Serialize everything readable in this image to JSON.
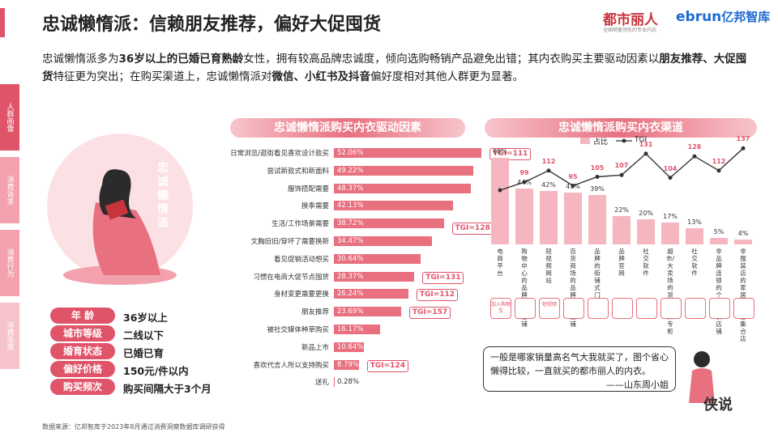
{
  "title": "忠诚懒惰派：信赖朋友推荐，偏好大促囤货",
  "logos": {
    "dushi": "都市丽人",
    "dushi_sub": "全国销量领先的专业内衣",
    "ebrun": "ebrun",
    "ebrun_cn": "亿邦智库"
  },
  "intro": {
    "p1": "忠诚懒惰派多为",
    "b1": "36岁以上的已婚已育熟龄",
    "p2": "女性，拥有较高品牌忠诚度，倾向选购畅销产品避免出错；其内衣购买主要驱动因素以",
    "b2": "朋友推荐、大促囤货",
    "p3": "特征更为突出；在购买渠道上，忠诚懒惰派对",
    "b3": "微信、小红书及抖音",
    "p4": "偏好度相对其他人群更为显著。"
  },
  "side_tabs": [
    "人群画像",
    "消费诉求",
    "消费行为",
    "消费态度"
  ],
  "persona_label": "忠诚懒惰派",
  "profile": [
    {
      "label": "年    龄",
      "value": "36岁以上"
    },
    {
      "label": "城市等级",
      "value": "二线以下"
    },
    {
      "label": "婚育状态",
      "value": "已婚已育"
    },
    {
      "label": "偏好价格",
      "value": "150元/件以内"
    },
    {
      "label": "购买频次",
      "value": "购买间隔大于3个月"
    }
  ],
  "drivers": {
    "title": "忠诚懒惰派购买内衣驱动因素",
    "items": [
      {
        "label": "日常浏览/逛街看见喜欢设计款买",
        "value": 52.06,
        "text": "52.06%",
        "tgi": "TGI=111"
      },
      {
        "label": "尝试新款式和新面料",
        "value": 49.22,
        "text": "49.22%"
      },
      {
        "label": "服饰搭配需要",
        "value": 48.37,
        "text": "48.37%"
      },
      {
        "label": "换季需要",
        "value": 42.13,
        "text": "42.13%"
      },
      {
        "label": "生活/工作场景需要",
        "value": 38.72,
        "text": "38.72%",
        "tgi": "TGI=128"
      },
      {
        "label": "文胸旧旧/穿坏了需要换新",
        "value": 34.47,
        "text": "34.47%"
      },
      {
        "label": "看见促销活动想买",
        "value": 30.64,
        "text": "30.64%"
      },
      {
        "label": "习惯在电商大促节点囤货",
        "value": 28.37,
        "text": "28.37%",
        "tgi": "TGI=131"
      },
      {
        "label": "身材变更需要更换",
        "value": 26.24,
        "text": "26.24%",
        "tgi": "TGI=112"
      },
      {
        "label": "朋友推荐",
        "value": 23.69,
        "text": "23.69%",
        "tgi": "TGI=157"
      },
      {
        "label": "被社交媒体种草购买",
        "value": 16.17,
        "text": "16.17%"
      },
      {
        "label": "新品上市",
        "value": 10.64,
        "text": "10.64%"
      },
      {
        "label": "喜欢代言人所以支持购买",
        "value": 8.79,
        "text": "8.79%",
        "tgi": "TGI=124"
      },
      {
        "label": "送礼",
        "value": 0.28,
        "text": "0.28%"
      }
    ]
  },
  "channels": {
    "title": "忠诚懒惰派购买内衣渠道",
    "legend_share": "占比",
    "legend_tgi": "TGI",
    "items": [
      {
        "name": "电商平台",
        "share": 68,
        "share_text": "68%",
        "tgi": 90,
        "tgi_text": "",
        "icon": "cart-icon",
        "icon_text": "加入购物车"
      },
      {
        "name": "购物中心的品牌专柜/店铺",
        "share": 44,
        "share_text": "44%",
        "tgi": 99,
        "tgi_text": "99",
        "icon": "bag-icon",
        "icon_text": ""
      },
      {
        "name": "短视频网站",
        "share": 42,
        "share_text": "42%",
        "tgi": 112,
        "tgi_text": "112",
        "icon": "video-icon",
        "icon_text": "短视频"
      },
      {
        "name": "百货商场的品牌专柜/店铺",
        "share": 41,
        "share_text": "41%",
        "tgi": 95,
        "tgi_text": "95",
        "icon": "store-icon",
        "icon_text": ""
      },
      {
        "name": "品牌的街铺式门店",
        "share": 39,
        "share_text": "39%",
        "tgi": 105,
        "tgi_text": "105",
        "icon": "shop-icon",
        "icon_text": ""
      },
      {
        "name": "品牌官网",
        "share": 22,
        "share_text": "22%",
        "tgi": 107,
        "tgi_text": "107",
        "icon": "web-icon",
        "icon_text": ""
      },
      {
        "name": "社交软件",
        "share": 20,
        "share_text": "20%",
        "tgi": 131,
        "tgi_text": "131",
        "icon": "chat-icon",
        "icon_text": ""
      },
      {
        "name": "超市/大卖场的货架/品牌专柜",
        "share": 17,
        "share_text": "17%",
        "tgi": 104,
        "tgi_text": "104",
        "icon": "market-icon",
        "icon_text": ""
      },
      {
        "name": "社交软件",
        "share": 13,
        "share_text": "13%",
        "tgi": 128,
        "tgi_text": "128",
        "icon": "phone-icon",
        "icon_text": ""
      },
      {
        "name": "非品牌连锁的个体内衣店铺",
        "share": 5,
        "share_text": "5%",
        "tgi": 112,
        "tgi_text": "112",
        "icon": "boutique-icon",
        "icon_text": ""
      },
      {
        "name": "非服装店的家居生活馆/集合店",
        "share": 4,
        "share_text": "4%",
        "tgi": 137,
        "tgi_text": "137",
        "icon": "home-icon",
        "icon_text": ""
      }
    ]
  },
  "quote": {
    "text": "一般是哪家销量高名气大我就买了，图个省心懒得比较，一直就买的都市丽人的内衣。",
    "author": "——山东周小姐"
  },
  "watermark": "侠说",
  "source": "数据来源：亿邦智库于2023年8月通过消费洞察数据库调研获得",
  "colors": {
    "accent": "#e0546a",
    "bar": "#e8707f",
    "channel_bar": "#f5b6bf",
    "line": "#333333"
  }
}
